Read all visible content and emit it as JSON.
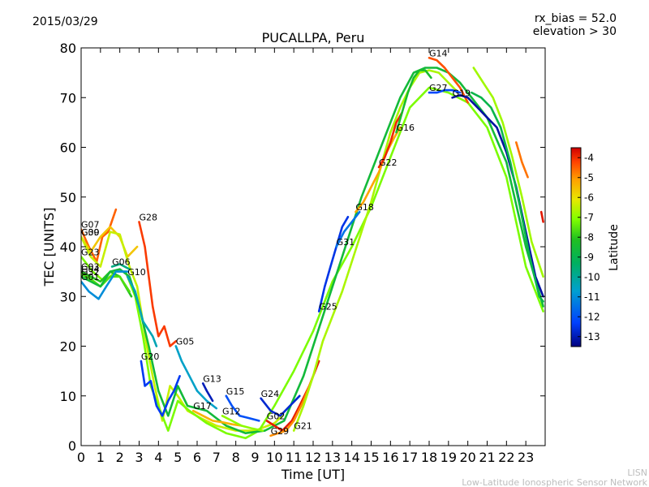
{
  "header": {
    "date": "2015/03/29",
    "rx_bias": "rx_bias = 52.0",
    "elevation": "elevation > 30"
  },
  "footer": {
    "org": "LISN",
    "org_full": "Low-Latitude Ionospheric Sensor Network"
  },
  "colors": {
    "colormap": [
      "#00007f",
      "#0040ff",
      "#00a0d0",
      "#00b060",
      "#20c020",
      "#80ff00",
      "#e8e800",
      "#ffa000",
      "#ff4000",
      "#d00000"
    ]
  },
  "chart_data": {
    "type": "line",
    "title": "PUCALLPA, Peru",
    "xlabel": "Time [UT]",
    "ylabel": "TEC [UNITS]",
    "xlim": [
      0,
      24
    ],
    "ylim": [
      0,
      80
    ],
    "x_ticks": [
      "0",
      "1",
      "2",
      "3",
      "4",
      "5",
      "6",
      "7",
      "8",
      "9",
      "10",
      "11",
      "12",
      "13",
      "14",
      "15",
      "16",
      "17",
      "18",
      "19",
      "20",
      "21",
      "22",
      "23"
    ],
    "y_ticks": [
      "0",
      "10",
      "20",
      "30",
      "40",
      "50",
      "60",
      "70",
      "80"
    ],
    "grid": false,
    "colorbar": {
      "label": "Latitude",
      "range": [
        -13.5,
        -3.5
      ],
      "ticks": [
        "-4",
        "-5",
        "-6",
        "-7",
        "-8",
        "-9",
        "-10",
        "-11",
        "-12",
        "-13"
      ]
    },
    "series": [
      {
        "name": "G07",
        "lat": -5.0,
        "points": [
          [
            0,
            43.5
          ],
          [
            0.4,
            40
          ],
          [
            0.8,
            37
          ],
          [
            1.1,
            42
          ],
          [
            1.4,
            43
          ],
          [
            1.8,
            47.5
          ]
        ]
      },
      {
        "name": "G30",
        "lat": -6.3,
        "points": [
          [
            0,
            42
          ],
          [
            0.5,
            39
          ],
          [
            1.0,
            42
          ],
          [
            1.5,
            44
          ],
          [
            2.0,
            42
          ],
          [
            2.4,
            38
          ],
          [
            2.9,
            40
          ]
        ]
      },
      {
        "name": "G09",
        "lat": -7.2,
        "points": [
          [
            0,
            42
          ],
          [
            0.5,
            38
          ],
          [
            1.0,
            36
          ],
          [
            1.5,
            43
          ],
          [
            2.0,
            42.5
          ],
          [
            2.5,
            36
          ],
          [
            2.9,
            32
          ],
          [
            3.4,
            20
          ],
          [
            3.8,
            12
          ],
          [
            4.2,
            5
          ],
          [
            4.6,
            12
          ],
          [
            5,
            10
          ],
          [
            5.5,
            7
          ],
          [
            6.2,
            5.5
          ],
          [
            7,
            4
          ],
          [
            8,
            3
          ],
          [
            9,
            3
          ],
          [
            10,
            4.5
          ],
          [
            10.4,
            6
          ]
        ]
      },
      {
        "name": "G23",
        "lat": -8.0,
        "points": [
          [
            0,
            38
          ],
          [
            0.6,
            35
          ],
          [
            1.2,
            33
          ],
          [
            1.8,
            35
          ],
          [
            2.3,
            35
          ],
          [
            2.8,
            30
          ],
          [
            3.2,
            22
          ],
          [
            3.6,
            12
          ],
          [
            4.1,
            7
          ],
          [
            4.5,
            3
          ],
          [
            5,
            9
          ],
          [
            5.6,
            7
          ],
          [
            6.5,
            4.5
          ],
          [
            7.5,
            2.5
          ],
          [
            8.5,
            1.5
          ],
          [
            9.2,
            3
          ],
          [
            10,
            8
          ],
          [
            11,
            15
          ],
          [
            12,
            23
          ],
          [
            13,
            33
          ],
          [
            14,
            40
          ],
          [
            15,
            48
          ],
          [
            16,
            58
          ],
          [
            17,
            68
          ],
          [
            18,
            72
          ],
          [
            19,
            71
          ],
          [
            20,
            69
          ],
          [
            21,
            64
          ],
          [
            22,
            54
          ],
          [
            23,
            36
          ],
          [
            23.9,
            27
          ]
        ]
      },
      {
        "name": "G06",
        "lat": -10.5,
        "points": [
          [
            1.6,
            36
          ],
          [
            2.0,
            36.5
          ],
          [
            2.5,
            35.5
          ]
        ]
      },
      {
        "name": "G03",
        "lat": -9.0,
        "points": [
          [
            0,
            35
          ],
          [
            0.5,
            34
          ],
          [
            1.0,
            33
          ],
          [
            1.5,
            35
          ],
          [
            2.0,
            34
          ],
          [
            2.6,
            30
          ]
        ]
      },
      {
        "name": "G04",
        "lat": -8.5,
        "points": [
          [
            0,
            34.5
          ],
          [
            0.5,
            33.5
          ],
          [
            1.0,
            32
          ],
          [
            1.5,
            34
          ],
          [
            2.0,
            34
          ],
          [
            2.5,
            31
          ]
        ]
      },
      {
        "name": "G32",
        "lat": -9.5,
        "points": [
          [
            0,
            34
          ],
          [
            0.5,
            33
          ],
          [
            1.0,
            32
          ],
          [
            1.5,
            35
          ],
          [
            2.0,
            35.5
          ],
          [
            2.5,
            34
          ],
          [
            3.0,
            28
          ],
          [
            3.5,
            20
          ],
          [
            4.0,
            11
          ],
          [
            4.5,
            6
          ],
          [
            5.0,
            12
          ],
          [
            5.5,
            8
          ],
          [
            6.5,
            7
          ],
          [
            7.5,
            4
          ],
          [
            8.5,
            2.5
          ],
          [
            9.5,
            3
          ],
          [
            10.5,
            5
          ],
          [
            11.5,
            14
          ],
          [
            12.5,
            26
          ],
          [
            13.5,
            38
          ],
          [
            14.5,
            50
          ],
          [
            15.5,
            60
          ],
          [
            16.5,
            70
          ],
          [
            17.2,
            75
          ],
          [
            17.8,
            76
          ],
          [
            18.4,
            76
          ],
          [
            19,
            75
          ],
          [
            19.6,
            73
          ],
          [
            20.2,
            70
          ],
          [
            21,
            66
          ],
          [
            22,
            57
          ],
          [
            23,
            40
          ],
          [
            23.9,
            28
          ]
        ]
      },
      {
        "name": "G01",
        "lat": -11.5,
        "points": [
          [
            0,
            33
          ],
          [
            0.4,
            31
          ],
          [
            0.9,
            29.5
          ],
          [
            1.3,
            32
          ],
          [
            1.8,
            35
          ],
          [
            2.4,
            35
          ]
        ]
      },
      {
        "name": "G10",
        "lat": -11.0,
        "points": [
          [
            2.4,
            34
          ],
          [
            2.8,
            31
          ],
          [
            3.2,
            25
          ],
          [
            3.7,
            22
          ],
          [
            3.9,
            20
          ]
        ]
      },
      {
        "name": "G28",
        "lat": -4.5,
        "points": [
          [
            3.0,
            45
          ],
          [
            3.3,
            40
          ],
          [
            3.5,
            34
          ],
          [
            3.7,
            28
          ],
          [
            4.0,
            22
          ],
          [
            4.3,
            24
          ],
          [
            4.6,
            20
          ],
          [
            4.9,
            21
          ]
        ]
      },
      {
        "name": "G20",
        "lat": -12.5,
        "points": [
          [
            3.1,
            17
          ],
          [
            3.3,
            12
          ],
          [
            3.6,
            13
          ],
          [
            3.9,
            8
          ],
          [
            4.2,
            6
          ],
          [
            4.5,
            9
          ],
          [
            4.8,
            11
          ],
          [
            5.1,
            14
          ]
        ]
      },
      {
        "name": "G05",
        "lat": -11.2,
        "points": [
          [
            4.9,
            20
          ],
          [
            5.2,
            17
          ],
          [
            5.6,
            14
          ],
          [
            6.0,
            11
          ],
          [
            6.5,
            9
          ],
          [
            7.0,
            7.5
          ]
        ]
      },
      {
        "name": "G13",
        "lat": -13.0,
        "points": [
          [
            6.3,
            12.5
          ],
          [
            6.5,
            11
          ],
          [
            6.8,
            9
          ]
        ]
      },
      {
        "name": "G17",
        "lat": -6.0,
        "points": [
          [
            5.8,
            7
          ],
          [
            6.3,
            6
          ],
          [
            6.8,
            5
          ],
          [
            7.3,
            4.7
          ],
          [
            7.8,
            4.3
          ],
          [
            8.3,
            4
          ]
        ]
      },
      {
        "name": "G15",
        "lat": -12.2,
        "points": [
          [
            7.5,
            10
          ],
          [
            7.8,
            8
          ],
          [
            8.2,
            6
          ],
          [
            8.7,
            5.5
          ],
          [
            9.2,
            5
          ]
        ]
      },
      {
        "name": "G12",
        "lat": -7.8,
        "points": [
          [
            7.3,
            6
          ],
          [
            7.8,
            5
          ],
          [
            8.3,
            4
          ],
          [
            8.8,
            3.5
          ],
          [
            9.4,
            3
          ]
        ]
      },
      {
        "name": "G24",
        "lat": -12.8,
        "points": [
          [
            9.3,
            9.5
          ],
          [
            9.8,
            7
          ],
          [
            10.3,
            6
          ],
          [
            10.8,
            8
          ],
          [
            11.3,
            10
          ]
        ]
      },
      {
        "name": "G02",
        "lat": -4.0,
        "points": [
          [
            9.6,
            5
          ],
          [
            10.0,
            4
          ],
          [
            10.4,
            3
          ],
          [
            10.9,
            5
          ],
          [
            11.3,
            8
          ],
          [
            11.8,
            12
          ],
          [
            12.3,
            17
          ]
        ]
      },
      {
        "name": "G29",
        "lat": -5.5,
        "points": [
          [
            9.8,
            2
          ],
          [
            10.2,
            2.5
          ],
          [
            10.6,
            3
          ],
          [
            11.0,
            5
          ],
          [
            11.5,
            9
          ],
          [
            12.0,
            14
          ]
        ]
      },
      {
        "name": "G21",
        "lat": -7.5,
        "points": [
          [
            11.0,
            3
          ],
          [
            11.5,
            8
          ],
          [
            12.0,
            14
          ],
          [
            12.5,
            21
          ],
          [
            13.0,
            26
          ],
          [
            13.5,
            31
          ],
          [
            14.0,
            37
          ],
          [
            14.5,
            43
          ],
          [
            15.0,
            49
          ],
          [
            15.5,
            56
          ],
          [
            16.0,
            63
          ],
          [
            16.5,
            68
          ],
          [
            17.0,
            72
          ],
          [
            17.5,
            75
          ],
          [
            18.0,
            75.5
          ],
          [
            18.5,
            75
          ],
          [
            19.0,
            73
          ],
          [
            19.5,
            71
          ]
        ]
      },
      {
        "name": "G25",
        "lat": -12.6,
        "points": [
          [
            12.3,
            27
          ],
          [
            12.6,
            32
          ],
          [
            12.9,
            36
          ],
          [
            13.2,
            40
          ],
          [
            13.5,
            44
          ],
          [
            13.8,
            46
          ]
        ]
      },
      {
        "name": "G31",
        "lat": -11.8,
        "points": [
          [
            13.2,
            40
          ],
          [
            13.6,
            43
          ],
          [
            14.0,
            45
          ],
          [
            14.4,
            47
          ]
        ]
      },
      {
        "name": "G18",
        "lat": -5.8,
        "points": [
          [
            14.2,
            47
          ],
          [
            14.6,
            49
          ],
          [
            15.0,
            52
          ],
          [
            15.4,
            55
          ],
          [
            15.8,
            59
          ],
          [
            16.2,
            62
          ],
          [
            16.5,
            64
          ]
        ]
      },
      {
        "name": "G22",
        "lat": -4.2,
        "points": [
          [
            15.4,
            56
          ],
          [
            15.7,
            58
          ],
          [
            16.0,
            61
          ],
          [
            16.3,
            65
          ],
          [
            16.6,
            67
          ]
        ]
      },
      {
        "name": "G16",
        "lat": -9.3,
        "points": [
          [
            16.3,
            63
          ],
          [
            16.6,
            67
          ],
          [
            16.9,
            71
          ],
          [
            17.2,
            74
          ],
          [
            17.5,
            75.5
          ],
          [
            17.8,
            75.5
          ],
          [
            18.1,
            74
          ]
        ]
      },
      {
        "name": "G14",
        "lat": -4.8,
        "points": [
          [
            18.0,
            78
          ],
          [
            18.4,
            77.5
          ],
          [
            18.8,
            76
          ],
          [
            19.2,
            74
          ],
          [
            19.6,
            72
          ],
          [
            20.0,
            69
          ]
        ]
      },
      {
        "name": "G27",
        "lat": -12.3,
        "points": [
          [
            18.0,
            71
          ],
          [
            18.4,
            71
          ],
          [
            18.8,
            71.5
          ],
          [
            19.2,
            71.5
          ],
          [
            19.6,
            71
          ]
        ]
      },
      {
        "name": "G19",
        "lat": -13.2,
        "points": [
          [
            19.2,
            70
          ],
          [
            19.6,
            70.5
          ],
          [
            20.0,
            70
          ],
          [
            20.5,
            68
          ],
          [
            21,
            66
          ],
          [
            21.5,
            64
          ],
          [
            22.0,
            59
          ],
          [
            22.5,
            52
          ],
          [
            23.0,
            43
          ],
          [
            23.5,
            34
          ],
          [
            23.9,
            30
          ]
        ]
      },
      {
        "name": "",
        "lat": -7.6,
        "points": [
          [
            20.3,
            76
          ],
          [
            20.8,
            73
          ],
          [
            21.3,
            70
          ],
          [
            21.8,
            65
          ],
          [
            22.3,
            58
          ],
          [
            22.8,
            50
          ],
          [
            23.3,
            41
          ],
          [
            23.9,
            34
          ]
        ]
      },
      {
        "name": "",
        "lat": -9.8,
        "points": [
          [
            20.2,
            71
          ],
          [
            20.7,
            70
          ],
          [
            21.2,
            68
          ],
          [
            21.7,
            64
          ],
          [
            22.2,
            57
          ],
          [
            22.7,
            48
          ],
          [
            23.2,
            38
          ],
          [
            23.7,
            30
          ],
          [
            23.9,
            29
          ]
        ]
      },
      {
        "name": "",
        "lat": -5.2,
        "points": [
          [
            22.5,
            61
          ],
          [
            22.8,
            57
          ],
          [
            23.1,
            54
          ]
        ]
      },
      {
        "name": "",
        "lat": -3.9,
        "points": [
          [
            23.8,
            47
          ],
          [
            23.9,
            45
          ]
        ]
      }
    ]
  }
}
